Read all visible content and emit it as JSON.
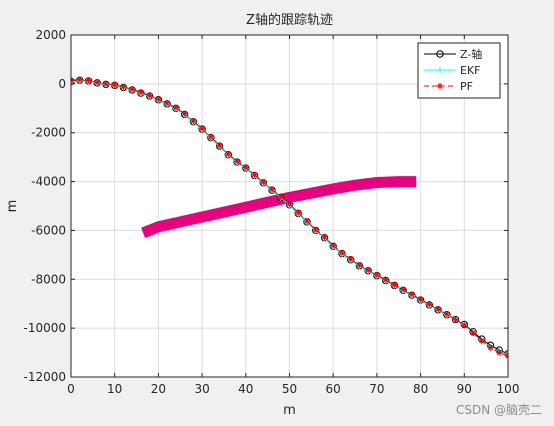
{
  "chart_data": {
    "type": "line",
    "title": "Z轴的跟踪轨迹",
    "xlabel": "m",
    "ylabel": "m",
    "xlim": [
      0,
      100
    ],
    "ylim": [
      -12000,
      2000
    ],
    "xticks": [
      0,
      10,
      20,
      30,
      40,
      50,
      60,
      70,
      80,
      90,
      100
    ],
    "yticks": [
      2000,
      0,
      -2000,
      -4000,
      -6000,
      -8000,
      -10000,
      -12000
    ],
    "grid": true,
    "legend_position": "top-right",
    "series": [
      {
        "name": "Z-轴",
        "color": "#000000",
        "marker": "circle",
        "x": [
          0,
          2,
          4,
          6,
          8,
          10,
          12,
          14,
          16,
          18,
          20,
          22,
          24,
          26,
          28,
          30,
          32,
          34,
          36,
          38,
          40,
          42,
          44,
          46,
          48,
          50,
          52,
          54,
          56,
          58,
          60,
          62,
          64,
          66,
          68,
          70,
          72,
          74,
          76,
          78,
          80,
          82,
          84,
          86,
          88,
          90,
          92,
          94,
          96,
          98,
          100
        ],
        "y": [
          100,
          150,
          120,
          40,
          -20,
          -60,
          -150,
          -250,
          -380,
          -500,
          -650,
          -820,
          -1000,
          -1250,
          -1550,
          -1850,
          -2200,
          -2550,
          -2900,
          -3200,
          -3450,
          -3750,
          -4050,
          -4350,
          -4650,
          -4950,
          -5300,
          -5650,
          -6000,
          -6300,
          -6650,
          -6950,
          -7200,
          -7450,
          -7650,
          -7850,
          -8050,
          -8250,
          -8450,
          -8650,
          -8850,
          -9050,
          -9250,
          -9450,
          -9650,
          -9850,
          -10150,
          -10450,
          -10700,
          -10900,
          -11050
        ]
      },
      {
        "name": "EKF",
        "color": "#00ffff",
        "marker": "plus",
        "x": [
          0,
          2,
          4,
          6,
          8,
          10,
          12,
          14,
          16,
          18,
          20,
          22,
          24,
          26,
          28,
          30,
          32,
          34,
          36,
          38,
          40,
          42,
          44,
          46,
          48,
          50,
          52,
          54,
          56,
          58,
          60,
          62,
          64,
          66,
          68,
          70,
          72,
          74,
          76,
          78,
          80,
          82,
          84,
          86,
          88,
          90,
          92,
          94,
          96,
          98,
          100
        ],
        "y": [
          80,
          130,
          100,
          30,
          -30,
          -70,
          -160,
          -260,
          -400,
          -520,
          -670,
          -840,
          -1020,
          -1270,
          -1570,
          -1870,
          -2220,
          -2570,
          -2920,
          -3220,
          -3470,
          -3770,
          -4070,
          -4370,
          -4670,
          -4970,
          -5320,
          -5670,
          -6020,
          -6320,
          -6670,
          -6970,
          -7220,
          -7470,
          -7670,
          -7870,
          -8070,
          -8270,
          -8470,
          -8670,
          -8870,
          -9070,
          -9270,
          -9470,
          -9650,
          -9880,
          -10200,
          -10520,
          -10780,
          -10950,
          -11080
        ]
      },
      {
        "name": "PF",
        "color": "#ff0000",
        "marker": "star",
        "x": [
          0,
          2,
          4,
          6,
          8,
          10,
          12,
          14,
          16,
          18,
          20,
          22,
          24,
          26,
          28,
          30,
          32,
          34,
          36,
          38,
          40,
          42,
          44,
          46,
          48,
          50,
          52,
          54,
          56,
          58,
          60,
          62,
          64,
          66,
          68,
          70,
          72,
          74,
          76,
          78,
          80,
          82,
          84,
          86,
          88,
          90,
          92,
          94,
          96,
          98,
          100
        ],
        "y": [
          140,
          180,
          140,
          60,
          0,
          -40,
          -120,
          -220,
          -340,
          -470,
          -620,
          -790,
          -970,
          -1220,
          -1520,
          -1820,
          -2170,
          -2520,
          -2870,
          -3170,
          -3420,
          -3720,
          -4020,
          -4320,
          -4620,
          -4920,
          -5270,
          -5620,
          -5970,
          -6270,
          -6620,
          -6920,
          -7170,
          -7420,
          -7620,
          -7820,
          -8020,
          -8220,
          -8420,
          -8620,
          -8820,
          -9020,
          -9220,
          -9420,
          -9650,
          -9880,
          -10200,
          -10520,
          -10800,
          -11000,
          -11150
        ]
      },
      {
        "color": "#e8007e",
        "x": [
          16.5,
          20,
          25,
          30,
          35,
          40,
          45,
          50,
          55,
          60,
          65,
          70,
          75,
          79
        ],
        "y": [
          -6100,
          -5850,
          -5650,
          -5450,
          -5250,
          -5050,
          -4850,
          -4650,
          -4470,
          -4300,
          -4150,
          -4040,
          -4000,
          -4000
        ]
      }
    ]
  },
  "watermark": "CSDN @脑壳二"
}
